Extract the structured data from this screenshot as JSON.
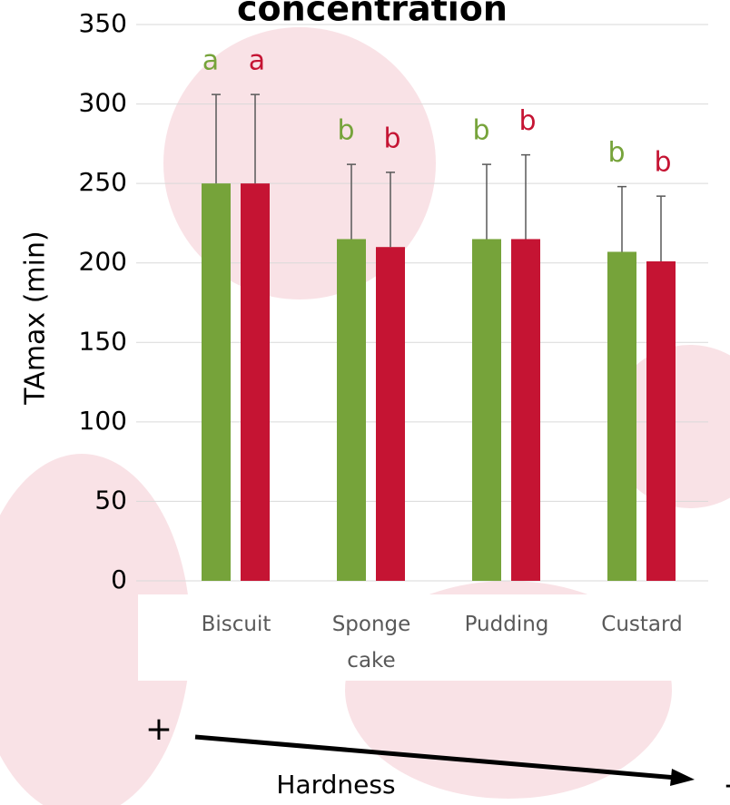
{
  "chart_data": {
    "type": "bar",
    "title": "concentration",
    "y_label": "TAmax (min)",
    "categories": [
      "Biscuit",
      "Sponge cake",
      "Pudding",
      "Custard"
    ],
    "series": [
      {
        "color": "#76a33a",
        "values": [
          250,
          215,
          215,
          207
        ],
        "errors": [
          56,
          47,
          47,
          41
        ],
        "letters": [
          "a",
          "b",
          "b",
          "b"
        ]
      },
      {
        "color": "#c51433",
        "values": [
          250,
          210,
          215,
          201
        ],
        "errors": [
          56,
          47,
          53,
          41
        ],
        "letters": [
          "a",
          "b",
          "b",
          "b"
        ]
      }
    ],
    "ylim": [
      0,
      350
    ],
    "yticks": [
      0,
      50,
      100,
      150,
      200,
      250,
      300,
      350
    ],
    "grid": true,
    "annotations": {
      "high": "+",
      "axis": "Hardness",
      "low": "-"
    }
  }
}
